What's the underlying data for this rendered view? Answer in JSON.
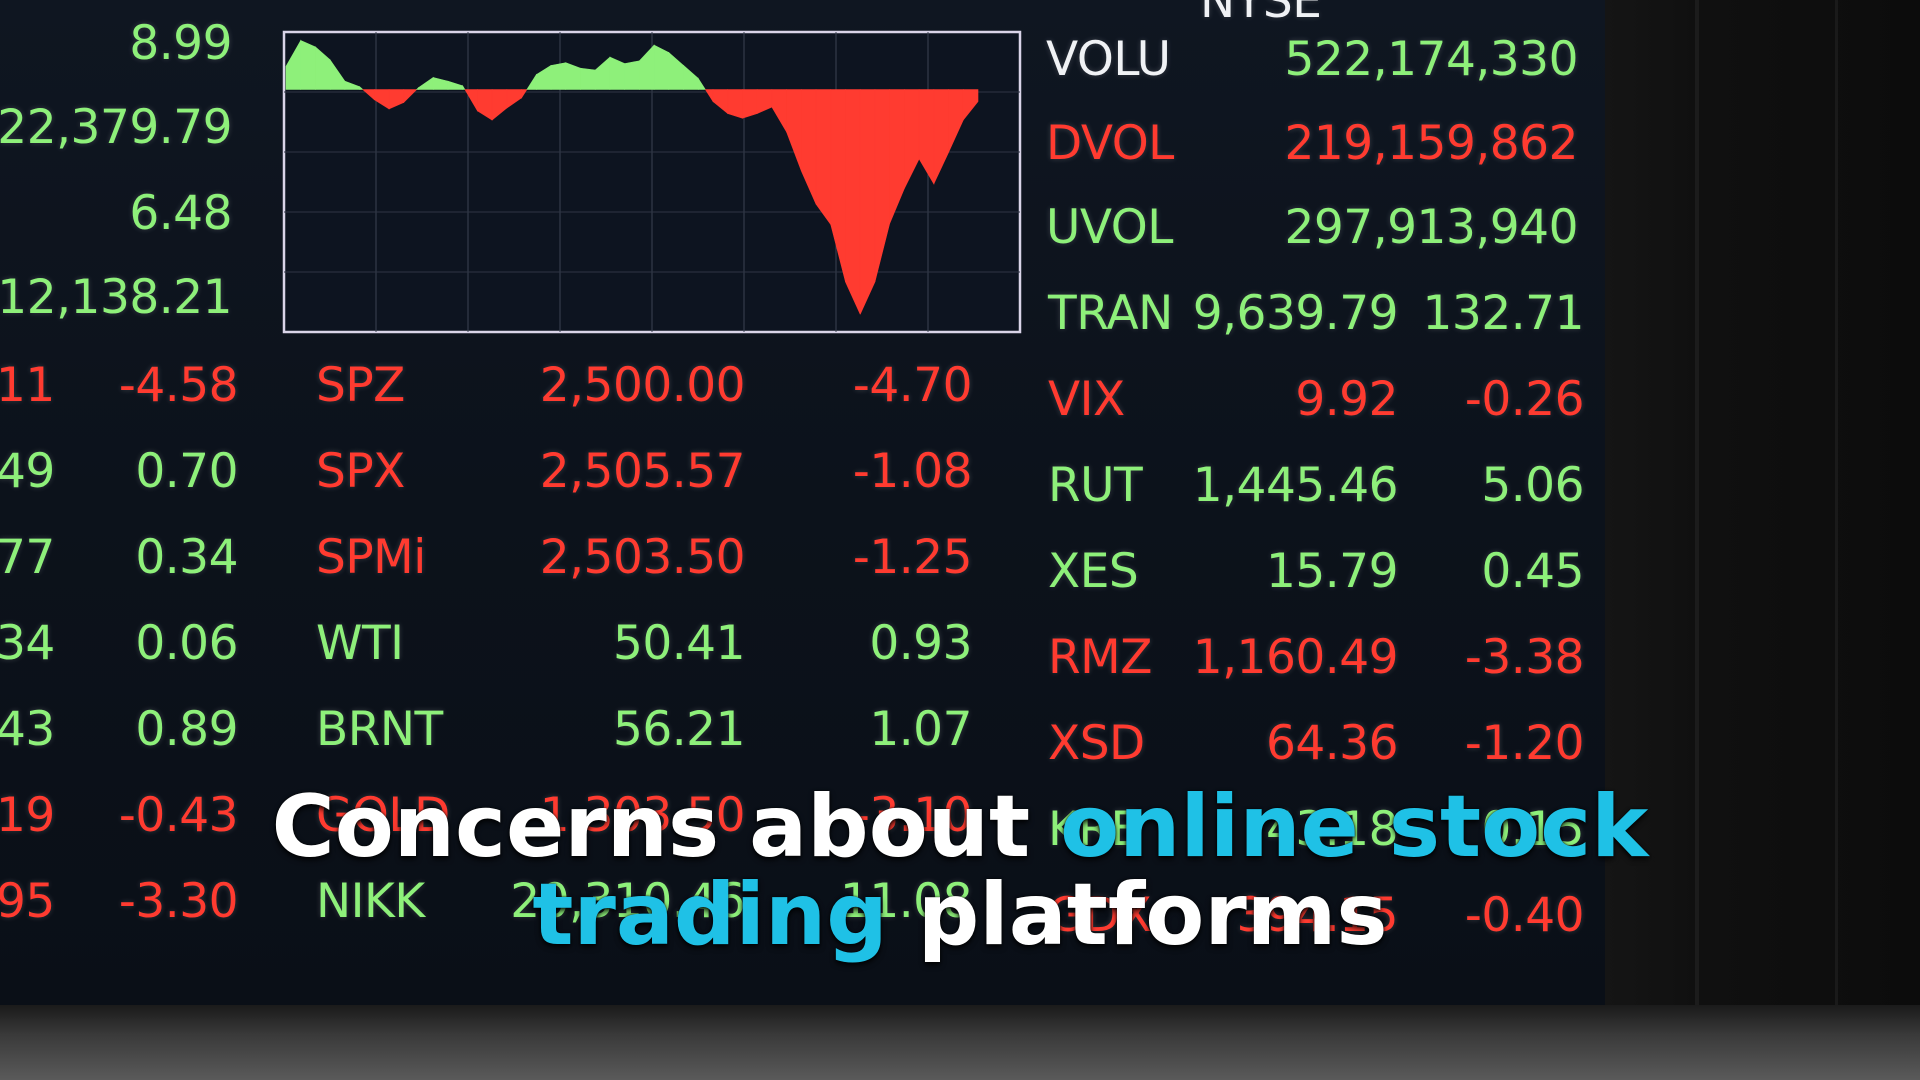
{
  "colors": {
    "up": "#8ef07a",
    "down": "#ff3b30",
    "caption_highlight": "#1fc1e6"
  },
  "left_column": [
    {
      "value": "8.99",
      "dir": "up"
    },
    {
      "value": "22,379.79",
      "dir": "up"
    },
    {
      "value": "6.48",
      "dir": "up"
    },
    {
      "value": "12,138.21",
      "dir": "up"
    }
  ],
  "left_rows": [
    {
      "prefix": "11",
      "change": "-4.58",
      "dir": "down"
    },
    {
      "prefix": "49",
      "change": "0.70",
      "dir": "up"
    },
    {
      "prefix": "77",
      "change": "0.34",
      "dir": "up"
    },
    {
      "prefix": "34",
      "change": "0.06",
      "dir": "up"
    },
    {
      "prefix": "43",
      "change": "0.89",
      "dir": "up"
    },
    {
      "prefix": "19",
      "change": "-0.43",
      "dir": "down"
    },
    {
      "prefix": "95",
      "change": "-3.30",
      "dir": "down"
    }
  ],
  "mid_rows": [
    {
      "symbol": "SPZ",
      "value": "2,500.00",
      "change": "-4.70",
      "dir": "down"
    },
    {
      "symbol": "SPX",
      "value": "2,505.57",
      "change": "-1.08",
      "dir": "down"
    },
    {
      "symbol": "SPMi",
      "value": "2,503.50",
      "change": "-1.25",
      "dir": "down"
    },
    {
      "symbol": "WTI",
      "value": "50.41",
      "change": "0.93",
      "dir": "up"
    },
    {
      "symbol": "BRNT",
      "value": "56.21",
      "change": "1.07",
      "dir": "up"
    },
    {
      "symbol": "GOLD",
      "value": "1,303.50",
      "change": "-3.10",
      "dir": "down"
    },
    {
      "symbol": "NIKK",
      "value": "20,310.46",
      "change": "11.08",
      "dir": "up"
    }
  ],
  "volume_rows": [
    {
      "symbol": "VOLU",
      "value": "522,174,330",
      "dir": "up",
      "label_dir": "white"
    },
    {
      "symbol": "DVOL",
      "value": "219,159,862",
      "dir": "down",
      "label_dir": "down"
    },
    {
      "symbol": "UVOL",
      "value": "297,913,940",
      "dir": "up",
      "label_dir": "up"
    }
  ],
  "right_rows": [
    {
      "symbol": "TRAN",
      "value": "9,639.79",
      "change": "132.71",
      "dir": "up"
    },
    {
      "symbol": "VIX",
      "value": "9.92",
      "change": "-0.26",
      "dir": "down"
    },
    {
      "symbol": "RUT",
      "value": "1,445.46",
      "change": "5.06",
      "dir": "up"
    },
    {
      "symbol": "XES",
      "value": "15.79",
      "change": "0.45",
      "dir": "up"
    },
    {
      "symbol": "RMZ",
      "value": "1,160.49",
      "change": "-3.38",
      "dir": "down"
    },
    {
      "symbol": "XSD",
      "value": "64.36",
      "change": "-1.20",
      "dir": "down"
    },
    {
      "symbol": "KRE",
      "value": "43.18",
      "change": "0.15",
      "dir": "up"
    },
    {
      "symbol": "GDX",
      "value": "394.15",
      "change": "-0.40",
      "dir": "down"
    }
  ],
  "top_partial_label": "NYSE",
  "chart_data": {
    "type": "area",
    "baseline": 0,
    "ylim": [
      -26,
      6
    ],
    "values": [
      2.5,
      5.3,
      4.6,
      3.2,
      0.9,
      0.3,
      -1.1,
      -2.1,
      -1.4,
      0.2,
      1.3,
      0.9,
      0.4,
      -2.3,
      -3.3,
      -2.0,
      -0.9,
      1.6,
      2.6,
      2.9,
      2.3,
      2.1,
      3.5,
      2.8,
      3.1,
      4.8,
      4.0,
      2.6,
      1.2,
      -1.3,
      -2.6,
      -3.1,
      -2.6,
      -1.9,
      -4.6,
      -8.8,
      -12.4,
      -14.6,
      -20.8,
      -24.3,
      -20.8,
      -14.5,
      -10.7,
      -7.5,
      -10.2,
      -6.8,
      -3.3,
      -1.3
    ]
  },
  "caption": {
    "line1_a": "Concerns about ",
    "line1_b": "online stock",
    "line2_a": "trading",
    "line2_b": " platforms"
  }
}
